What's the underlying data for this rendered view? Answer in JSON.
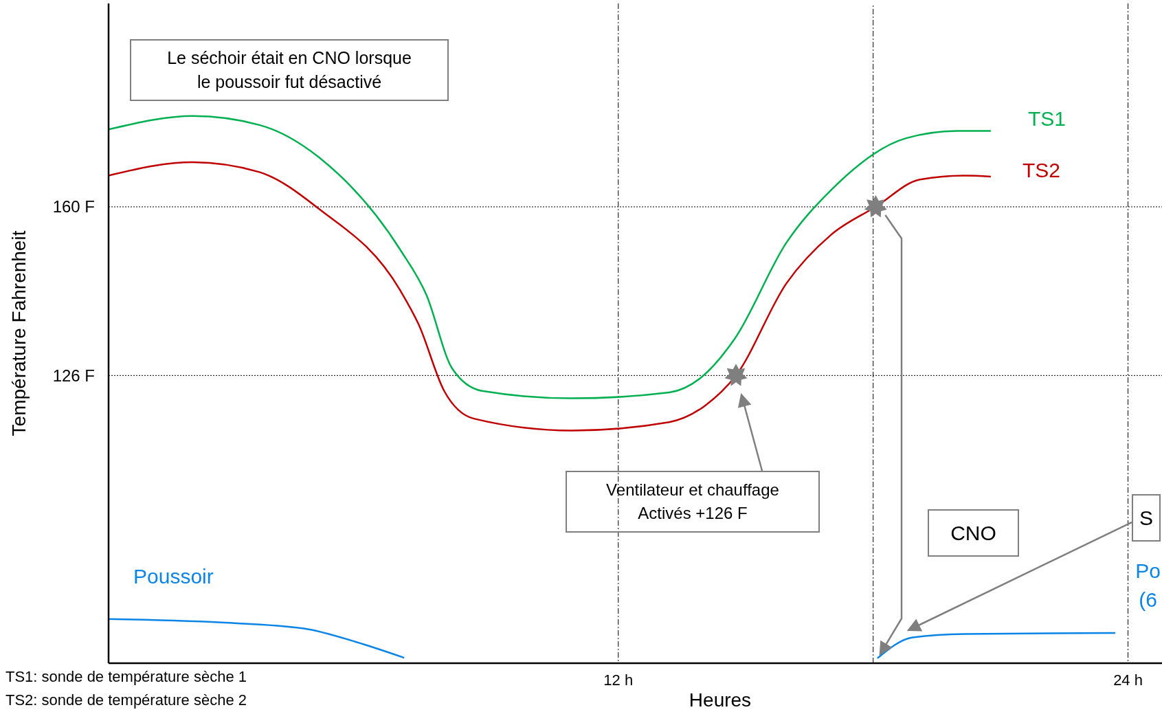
{
  "chart_data": {
    "type": "line",
    "xlabel": "Heures",
    "ylabel": "Température Fahrenheit",
    "xlim": [
      0,
      24.8
    ],
    "ylim": [
      68,
      201
    ],
    "xticks": [
      {
        "value": 12,
        "label": "12 h"
      },
      {
        "value": 24,
        "label": "24 h"
      }
    ],
    "yticks": [
      {
        "value": 126,
        "label": "126 F"
      },
      {
        "value": 160,
        "label": "160 F"
      }
    ],
    "grid": true,
    "ref_lines": [
      {
        "axis": "x",
        "value": 18
      }
    ],
    "series": [
      {
        "name": "TS1",
        "color": "#00b050",
        "x": [
          0,
          1.98,
          3.55,
          4.95,
          6.87,
          7.48,
          8.09,
          8.79,
          10.9,
          13.2,
          13.95,
          14.74,
          15.96,
          17.0,
          18.76,
          19.98,
          20.77
        ],
        "values": [
          175.6,
          178.3,
          176.5,
          170,
          151.3,
          142.3,
          127.4,
          122.9,
          121.4,
          122.6,
          125.6,
          133.4,
          152.8,
          163.3,
          173.8,
          175.3,
          175.3
        ]
      },
      {
        "name": "TS2",
        "color": "#c00000",
        "x": [
          0,
          1.98,
          3.55,
          4.95,
          6.87,
          7.3,
          7.9,
          8.6,
          10.9,
          13.2,
          14.04,
          14.77,
          15.96,
          17.0,
          18.06,
          19.1,
          20.16,
          20.77
        ],
        "values": [
          166.3,
          169,
          167,
          159.6,
          143.1,
          136.3,
          122.9,
          117.3,
          114.9,
          116.6,
          119.9,
          126,
          144.6,
          154.3,
          160,
          165.5,
          166.3,
          166.1
        ]
      },
      {
        "name": "Poussoir",
        "color": "#0a84e6",
        "x": [
          0,
          2.67,
          4.6,
          5.82,
          6.96,
          12,
          18.1,
          18.93,
          20.16,
          23.7
        ],
        "values": [
          76.9,
          76.2,
          75,
          72.3,
          69.1,
          null,
          69,
          73.2,
          73.9,
          74.1
        ]
      },
      {
        "type": "scatter",
        "marker": "star",
        "color": "#7f7f7f",
        "x": [
          14.77,
          18.06
        ],
        "values": [
          126,
          160
        ]
      }
    ],
    "annotations": [
      "Le séchoir était en CNO lorsque le poussoir fut désactivé",
      "Ventilateur et chauffage Activés +126 F",
      "CNO",
      "S",
      "Po (6",
      "TS1: sonde de température sèche 1",
      "TS2: sonde de température sèche 2"
    ]
  }
}
